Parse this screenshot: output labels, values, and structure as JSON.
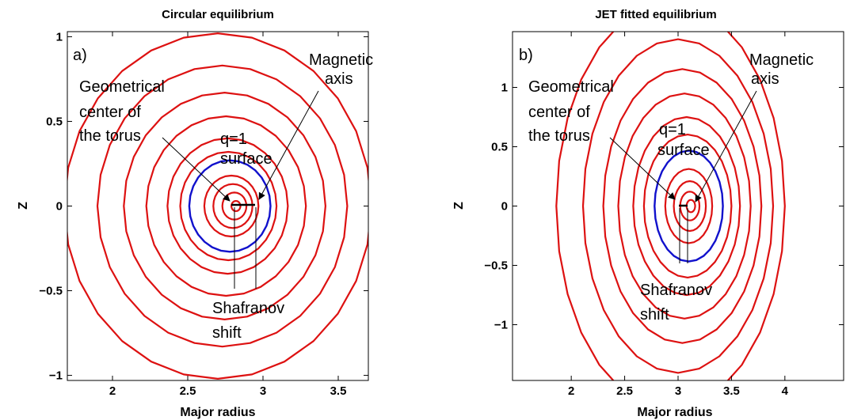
{
  "chart_data": [
    {
      "type": "line",
      "panel_label": "a)",
      "title": "Circular equilibrium",
      "xlabel": "Major radius",
      "ylabel": "Z",
      "xlim": [
        1.7,
        3.7
      ],
      "ylim": [
        -1.03,
        1.03
      ],
      "xticks": [
        2,
        2.5,
        3,
        3.5
      ],
      "xtick_labels": [
        "2",
        "2.5",
        "3",
        "3.5"
      ],
      "yticks": [
        -1,
        -0.5,
        0,
        0.5,
        1
      ],
      "ytick_labels": [
        "−1",
        "−0.5",
        "0",
        "0.5",
        "1"
      ],
      "grid": false,
      "flux_color": "#dd1111",
      "q1_color": "#1111cc",
      "geometric_center": [
        2.7,
        0
      ],
      "magnetic_axis": [
        2.82,
        0
      ],
      "flux_surfaces": [
        {
          "r0": 2.82,
          "a": 0.03,
          "kappa": 1
        },
        {
          "r0": 2.81,
          "a": 0.08,
          "kappa": 1
        },
        {
          "r0": 2.8,
          "a": 0.13,
          "kappa": 1
        },
        {
          "r0": 2.79,
          "a": 0.18,
          "kappa": 1
        },
        {
          "r0": 2.77,
          "a": 0.32,
          "kappa": 1
        },
        {
          "r0": 2.765,
          "a": 0.4,
          "kappa": 1
        },
        {
          "r0": 2.755,
          "a": 0.53,
          "kappa": 1
        },
        {
          "r0": 2.745,
          "a": 0.67,
          "kappa": 1
        },
        {
          "r0": 2.73,
          "a": 0.83,
          "kappa": 1
        },
        {
          "r0": 2.7,
          "a": 1.02,
          "kappa": 1
        }
      ],
      "q1_surface": {
        "r0": 2.78,
        "a": 0.27,
        "kappa": 1
      },
      "annotations": {
        "magnetic_axis": [
          "Magnetic",
          "axis"
        ],
        "geometric_center": [
          "Geometrical",
          "center of",
          "the torus"
        ],
        "q1": [
          "q=1",
          "surface"
        ],
        "shift": [
          "Shafranov",
          "shift"
        ]
      }
    },
    {
      "type": "line",
      "panel_label": "b)",
      "title": "JET fitted equilibrium",
      "xlabel": "Major radius",
      "ylabel": "Z",
      "xlim": [
        1.45,
        4.55
      ],
      "ylim": [
        -1.47,
        1.47
      ],
      "xticks": [
        2,
        2.5,
        3,
        3.5,
        4
      ],
      "xtick_labels": [
        "2",
        "2.5",
        "3",
        "3.5",
        "4"
      ],
      "yticks": [
        -1,
        -0.5,
        0,
        0.5,
        1
      ],
      "ytick_labels": [
        "−1",
        "−0.5",
        "0",
        "0.5",
        "1"
      ],
      "grid": false,
      "flux_color": "#dd1111",
      "q1_color": "#1111cc",
      "geometric_center": [
        3.05,
        0
      ],
      "magnetic_axis": [
        3.12,
        0
      ],
      "flux_surfaces": [
        {
          "r0": 3.12,
          "a": 0.04,
          "kappa": 1.3
        },
        {
          "r0": 3.11,
          "a": 0.09,
          "kappa": 1.35
        },
        {
          "r0": 3.11,
          "a": 0.15,
          "kappa": 1.4
        },
        {
          "r0": 3.1,
          "a": 0.22,
          "kappa": 1.42
        },
        {
          "r0": 3.09,
          "a": 0.41,
          "kappa": 1.47
        },
        {
          "r0": 3.08,
          "a": 0.5,
          "kappa": 1.5
        },
        {
          "r0": 3.06,
          "a": 0.62,
          "kappa": 1.53
        },
        {
          "r0": 3.04,
          "a": 0.74,
          "kappa": 1.56
        },
        {
          "r0": 3.0,
          "a": 0.89,
          "kappa": 1.58
        },
        {
          "r0": 2.93,
          "a": 1.07,
          "kappa": 1.6
        }
      ],
      "q1_surface": {
        "r0": 3.1,
        "a": 0.32,
        "kappa": 1.46
      },
      "annotations": {
        "magnetic_axis": [
          "Magnetic",
          "axis"
        ],
        "geometric_center": [
          "Geometrical",
          "center of",
          "the torus"
        ],
        "q1": [
          "q=1",
          "surface"
        ],
        "shift": [
          "Shafranov",
          "shift"
        ]
      }
    }
  ]
}
